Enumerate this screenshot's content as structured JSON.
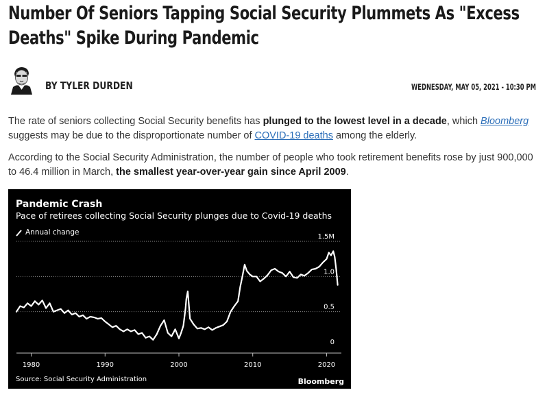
{
  "article": {
    "title": "Number Of Seniors Tapping Social Security Plummets As \"Excess Deaths\" Spike During Pandemic",
    "author": "BY TYLER DURDEN",
    "date": "WEDNESDAY, MAY 05, 2021 - 10:30 PM",
    "p1": {
      "a": "The rate of seniors collecting Social Security benefits has ",
      "b": "plunged to the lowest level in a decade",
      "c": ", which ",
      "link1": "Bloomberg",
      "d": " suggests may be due to the disproportionate number of ",
      "link2": "COVID-19 deaths",
      "e": " among the elderly."
    },
    "p2": {
      "a": "According to the Social Security Administration, the number of people who took retirement benefits rose by just 900,000 to 46.4 million in March, ",
      "b": "the smallest year-over-year gain since April 2009",
      "c": "."
    }
  },
  "chart_data": {
    "type": "line",
    "title": "Pandemic Crash",
    "subtitle": "Pace of retirees collecting Social Security plunges due to Covid-19 deaths",
    "legend": "Annual change",
    "source": "Source: Social Security Administration",
    "brand": "Bloomberg",
    "xlim": [
      1978,
      2022
    ],
    "ylim": [
      0,
      1.5
    ],
    "x_ticks": [
      1980,
      1990,
      2000,
      2010,
      2020
    ],
    "y_ticks": [
      {
        "value": 0,
        "label": "0"
      },
      {
        "value": 0.5,
        "label": "0.5"
      },
      {
        "value": 1.0,
        "label": "1.0"
      },
      {
        "value": 1.5,
        "label": "1.5M"
      }
    ],
    "grid": "horizontal dotted",
    "colors": {
      "background": "#000000",
      "line": "#ffffff",
      "text": "#ffffff",
      "grid": "#8c8c8c"
    },
    "series": [
      {
        "x": [
          1978.0,
          1978.5,
          1979.0,
          1979.5,
          1980.0,
          1980.5,
          1981.0,
          1981.5,
          1982.0,
          1982.5,
          1983.0,
          1983.5,
          1984.0,
          1984.5,
          1985.0,
          1985.5,
          1986.0,
          1986.5,
          1987.0,
          1987.5,
          1988.0,
          1988.5,
          1989.0,
          1989.5,
          1990.0,
          1990.5,
          1991.0,
          1991.5,
          1992.0,
          1992.5,
          1993.0,
          1993.5,
          1994.0,
          1994.5,
          1995.0,
          1995.5,
          1996.0,
          1996.5,
          1997.0,
          1997.5,
          1998.0,
          1998.5,
          1999.0,
          1999.5,
          2000.0,
          2000.3,
          2000.6,
          2000.9,
          2001.0,
          2001.2,
          2001.5,
          2002.0,
          2002.5,
          2003.0,
          2003.5,
          2004.0,
          2004.5,
          2005.0,
          2005.5,
          2006.0,
          2006.5,
          2007.0,
          2007.5,
          2008.0,
          2008.3,
          2008.6,
          2008.9,
          2009.2,
          2009.6,
          2010.0,
          2010.5,
          2011.0,
          2011.5,
          2012.0,
          2012.5,
          2013.0,
          2013.5,
          2014.0,
          2014.5,
          2015.0,
          2015.5,
          2016.0,
          2016.5,
          2017.0,
          2017.5,
          2018.0,
          2018.5,
          2019.0,
          2019.5,
          2020.0,
          2020.3,
          2020.6,
          2020.9,
          2021.1,
          2021.3,
          2021.5
        ],
        "y": [
          0.5,
          0.58,
          0.56,
          0.62,
          0.58,
          0.65,
          0.6,
          0.66,
          0.55,
          0.62,
          0.5,
          0.52,
          0.54,
          0.48,
          0.52,
          0.46,
          0.48,
          0.43,
          0.45,
          0.4,
          0.43,
          0.42,
          0.4,
          0.41,
          0.36,
          0.32,
          0.28,
          0.3,
          0.25,
          0.22,
          0.25,
          0.22,
          0.24,
          0.18,
          0.2,
          0.13,
          0.15,
          0.1,
          0.18,
          0.3,
          0.38,
          0.2,
          0.15,
          0.25,
          0.12,
          0.2,
          0.3,
          0.55,
          0.68,
          0.79,
          0.4,
          0.32,
          0.26,
          0.27,
          0.25,
          0.28,
          0.24,
          0.27,
          0.29,
          0.31,
          0.36,
          0.5,
          0.58,
          0.65,
          0.85,
          1.0,
          1.17,
          1.08,
          1.03,
          1.0,
          1.0,
          0.93,
          0.97,
          1.02,
          1.09,
          1.11,
          1.07,
          1.05,
          1.0,
          1.07,
          0.99,
          0.98,
          1.03,
          1.01,
          1.05,
          1.1,
          1.11,
          1.14,
          1.2,
          1.25,
          1.34,
          1.3,
          1.36,
          1.28,
          1.1,
          0.88
        ]
      }
    ]
  }
}
